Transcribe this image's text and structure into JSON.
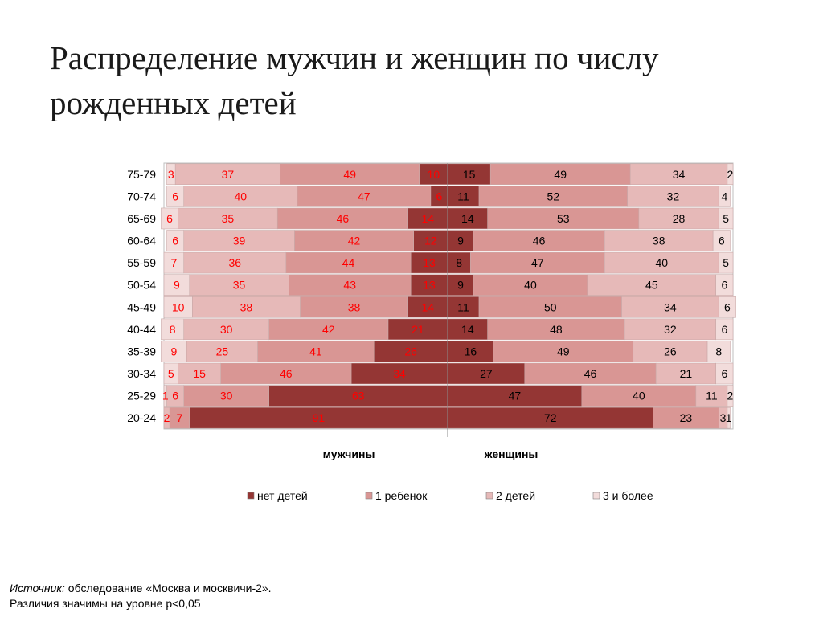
{
  "slide": {
    "title": "Распределение мужчин и женщин по числу рожденных детей"
  },
  "footnote": {
    "source_label": "Источник:",
    "source_text": " обследование «Москва и москвичи-2».",
    "significance": "Различия значимы на уровне p<0,05"
  },
  "colors": {
    "none": "#943634",
    "one": "#d99694",
    "two": "#e6b9b8",
    "three": "#f2dcdb",
    "label_men": "#ff0000",
    "label_women": "#000000"
  },
  "chart_data": {
    "type": "bar",
    "orientation": "horizontal",
    "stacked": "diverging-100%",
    "categories": [
      "75-79",
      "70-74",
      "65-69",
      "60-64",
      "55-59",
      "50-54",
      "45-49",
      "40-44",
      "35-39",
      "30-34",
      "25-29",
      "20-24"
    ],
    "groups": [
      "мужчины",
      "женщины"
    ],
    "series": [
      {
        "name": "нет детей",
        "color_key": "none",
        "men": [
          10,
          6,
          14,
          12,
          13,
          13,
          14,
          21,
          26,
          34,
          63,
          91
        ],
        "women": [
          15,
          11,
          14,
          9,
          8,
          9,
          11,
          14,
          16,
          27,
          47,
          72
        ]
      },
      {
        "name": "1 ребенок",
        "color_key": "one",
        "men": [
          49,
          47,
          46,
          42,
          44,
          43,
          38,
          42,
          41,
          46,
          30,
          7
        ],
        "women": [
          49,
          52,
          53,
          46,
          47,
          40,
          50,
          48,
          49,
          46,
          40,
          23
        ]
      },
      {
        "name": "2 детей",
        "color_key": "two",
        "men": [
          37,
          40,
          35,
          39,
          36,
          35,
          38,
          30,
          25,
          15,
          6,
          2
        ],
        "women": [
          34,
          32,
          28,
          38,
          40,
          45,
          34,
          32,
          26,
          21,
          11,
          3
        ]
      },
      {
        "name": "3 и более",
        "color_key": "three",
        "men": [
          3,
          6,
          6,
          6,
          7,
          9,
          10,
          8,
          9,
          5,
          1,
          null
        ],
        "women": [
          2,
          4,
          5,
          6,
          5,
          6,
          6,
          6,
          8,
          6,
          2,
          1
        ]
      }
    ],
    "legend_position": "bottom",
    "grid": false
  }
}
